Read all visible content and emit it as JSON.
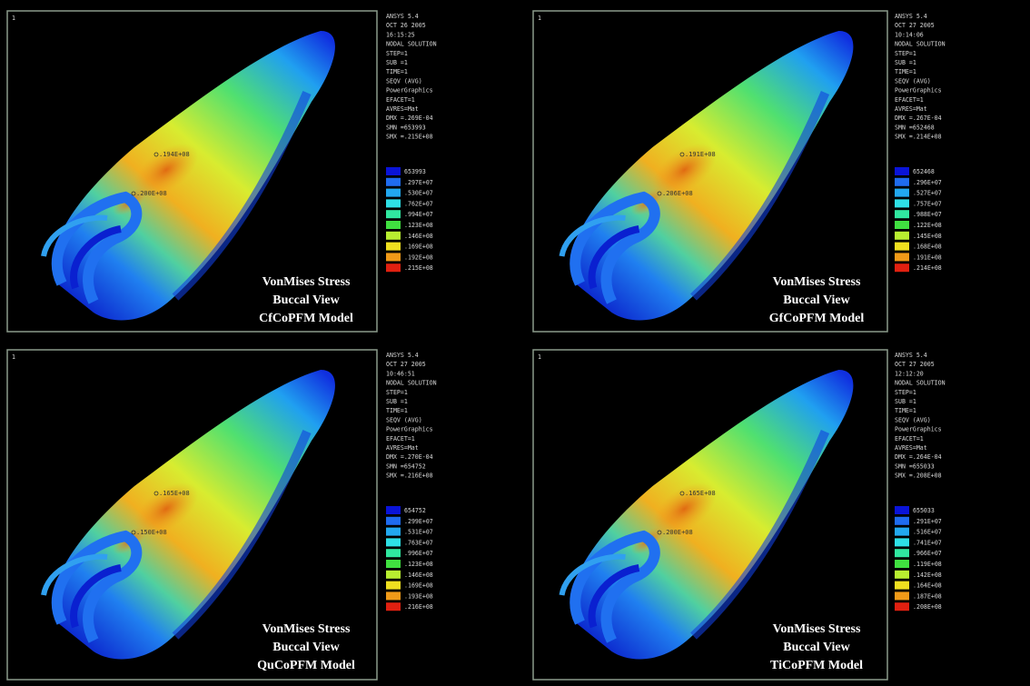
{
  "legend_colors": [
    "#0a14d8",
    "#1f6cf0",
    "#22a8f0",
    "#2ee0e6",
    "#30e8a0",
    "#40e040",
    "#b8ee30",
    "#f0e020",
    "#f09a18",
    "#e02010"
  ],
  "panels": [
    {
      "corner": "1",
      "info": [
        "ANSYS 5.4",
        "OCT 26 2005",
        "16:15:25",
        "NODAL SOLUTION",
        "STEP=1",
        "SUB =1",
        "TIME=1",
        "SEQV      (AVG)",
        "PowerGraphics",
        "EFACET=1",
        "AVRES=Mat",
        "DMX =.269E-04",
        "SMN =653993",
        "SMX =.215E+08"
      ],
      "legend": [
        "653993",
        ".297E+07",
        ".530E+07",
        ".762E+07",
        ".994E+07",
        ".123E+08",
        ".146E+08",
        ".169E+08",
        ".192E+08",
        ".215E+08"
      ],
      "annotations": [
        ".194E+08",
        ".200E+08"
      ],
      "caption": [
        "VonMises Stress",
        "Buccal View",
        "CfCoPFM Model"
      ]
    },
    {
      "corner": "1",
      "info": [
        "ANSYS 5.4",
        "OCT 27 2005",
        "10:14:06",
        "NODAL SOLUTION",
        "STEP=1",
        "SUB =1",
        "TIME=1",
        "SEQV      (AVG)",
        "PowerGraphics",
        "EFACET=1",
        "AVRES=Mat",
        "DMX =.267E-04",
        "SMN =652468",
        "SMX =.214E+08"
      ],
      "legend": [
        "652468",
        ".296E+07",
        ".527E+07",
        ".757E+07",
        ".988E+07",
        ".122E+08",
        ".145E+08",
        ".168E+08",
        ".191E+08",
        ".214E+08"
      ],
      "annotations": [
        ".191E+08",
        ".206E+08"
      ],
      "caption": [
        "VonMises Stress",
        "Buccal View",
        "GfCoPFM Model"
      ]
    },
    {
      "corner": "1",
      "info": [
        "ANSYS 5.4",
        "OCT 27 2005",
        "10:46:51",
        "NODAL SOLUTION",
        "STEP=1",
        "SUB =1",
        "TIME=1",
        "SEQV      (AVG)",
        "PowerGraphics",
        "EFACET=1",
        "AVRES=Mat",
        "DMX =.270E-04",
        "SMN =654752",
        "SMX =.216E+08"
      ],
      "legend": [
        "654752",
        ".299E+07",
        ".531E+07",
        ".763E+07",
        ".996E+07",
        ".123E+08",
        ".146E+08",
        ".169E+08",
        ".193E+08",
        ".216E+08"
      ],
      "annotations": [
        ".165E+08",
        ".150E+08"
      ],
      "caption": [
        "VonMises Stress",
        "Buccal View",
        "QuCoPFM Model"
      ]
    },
    {
      "corner": "1",
      "info": [
        "ANSYS 5.4",
        "OCT 27 2005",
        "12:12:20",
        "NODAL SOLUTION",
        "STEP=1",
        "SUB =1",
        "TIME=1",
        "SEQV      (AVG)",
        "PowerGraphics",
        "EFACET=1",
        "AVRES=Mat",
        "DMX =.264E-04",
        "SMN =655033",
        "SMX =.208E+08"
      ],
      "legend": [
        "655033",
        ".291E+07",
        ".516E+07",
        ".741E+07",
        ".966E+07",
        ".119E+08",
        ".142E+08",
        ".164E+08",
        ".187E+08",
        ".208E+08"
      ],
      "annotations": [
        ".165E+08",
        ".200E+08"
      ],
      "caption": [
        "VonMises Stress",
        "Buccal View",
        "TiCoPFM Model"
      ]
    }
  ]
}
